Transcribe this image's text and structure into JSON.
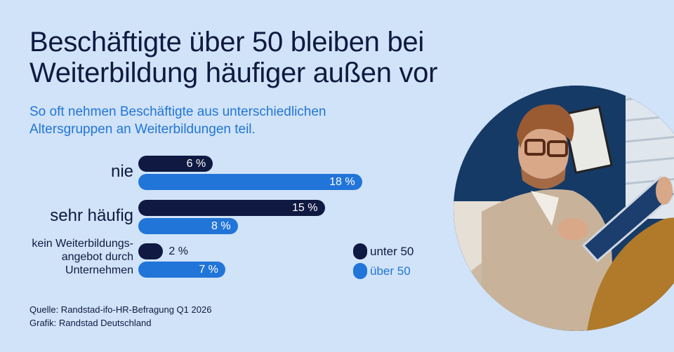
{
  "title_lines": [
    "Beschäftigte über 50 bleiben bei",
    "Weiterbildung häufiger außen vor"
  ],
  "subtitle_lines": [
    "So oft nehmen Beschäftigte aus unterschiedlichen",
    "Altersgruppen an Weiterbildungen teil."
  ],
  "chart_data": {
    "type": "bar",
    "orientation": "horizontal",
    "categories": [
      "nie",
      "sehr häufig",
      "kein Weiterbildungs-angebot durch Unternehmen"
    ],
    "category_lines": [
      [
        "nie"
      ],
      [
        "sehr häufig"
      ],
      [
        "kein Weiterbildungs-",
        "angebot durch",
        "Unternehmen"
      ]
    ],
    "series": [
      {
        "name": "unter 50",
        "values": [
          6,
          15,
          2
        ],
        "labels": [
          "6 %",
          "15 %",
          "2 %"
        ],
        "color": "#0f1941"
      },
      {
        "name": "über 50",
        "values": [
          18,
          8,
          7
        ],
        "labels": [
          "18 %",
          "8 %",
          "7 %"
        ],
        "color": "#2175d9"
      }
    ],
    "unit": "%",
    "legend": "bottom-right",
    "grid": false
  },
  "source": "Quelle: Randstad-ifo-HR-Befragung Q1 2026",
  "credit": "Grafik: Randstad Deutschland",
  "colors": {
    "background": "#d1e3f8",
    "dark": "#0f1941",
    "blue": "#2175d9"
  }
}
